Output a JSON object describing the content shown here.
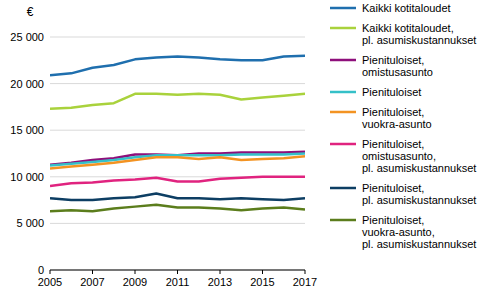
{
  "chart_data": {
    "type": "line",
    "y_label": "€",
    "x": [
      2005,
      2006,
      2007,
      2008,
      2009,
      2010,
      2011,
      2012,
      2013,
      2014,
      2015,
      2016,
      2017
    ],
    "xlim": [
      2005,
      2017
    ],
    "xticks": [
      2005,
      2007,
      2009,
      2011,
      2013,
      2015,
      2017
    ],
    "ylim": [
      0,
      25000
    ],
    "yticks": [
      0,
      {
        "value": 5000,
        "label": "5 000"
      },
      {
        "value": 10000,
        "label": "10 000"
      },
      {
        "value": 15000,
        "label": "15 000"
      },
      {
        "value": 20000,
        "label": "20 000"
      },
      {
        "value": 25000,
        "label": "25 000"
      }
    ],
    "grid": true,
    "legend": "right",
    "series": [
      {
        "name": "Kaikki kotitaloudet",
        "color": "#1f6fae",
        "values": [
          20900,
          21100,
          21700,
          22000,
          22600,
          22800,
          22900,
          22800,
          22600,
          22500,
          22500,
          22900,
          23000
        ]
      },
      {
        "name": "Kaikki kotitaloudet, pl. asumiskustannukset",
        "color": "#a9d23c",
        "values": [
          17300,
          17400,
          17700,
          17900,
          18900,
          18900,
          18800,
          18900,
          18800,
          18300,
          18500,
          18700,
          18900
        ]
      },
      {
        "name": "Pienituloiset, omistusasunto",
        "color": "#8e0f7b",
        "values": [
          11300,
          11500,
          11800,
          12000,
          12400,
          12400,
          12300,
          12500,
          12500,
          12600,
          12600,
          12600,
          12700
        ]
      },
      {
        "name": "Pienituloiset",
        "color": "#35c0c8",
        "values": [
          11200,
          11400,
          11600,
          11800,
          12100,
          12300,
          12300,
          12300,
          12300,
          12400,
          12400,
          12400,
          12500
        ]
      },
      {
        "name": "Pienituloiset, vuokra-asunto",
        "color": "#f39322",
        "values": [
          10900,
          11100,
          11300,
          11500,
          11800,
          12100,
          12100,
          11900,
          12100,
          11800,
          11900,
          12000,
          12200
        ]
      },
      {
        "name": "Pienituloiset, omistusasunto, pl. asumiskustannukset",
        "color": "#e0237f",
        "values": [
          9000,
          9300,
          9400,
          9600,
          9700,
          9900,
          9500,
          9500,
          9800,
          9900,
          10000,
          10000,
          10000
        ]
      },
      {
        "name": "Pienituloiset, pl. asumiskustannukset",
        "color": "#0d3e63",
        "values": [
          7700,
          7500,
          7500,
          7700,
          7800,
          8200,
          7700,
          7700,
          7600,
          7700,
          7600,
          7500,
          7700
        ]
      },
      {
        "name": "Pienituloiset, vuokra-asunto, pl. asumiskustannukset",
        "color": "#5b7d1c",
        "values": [
          6300,
          6400,
          6300,
          6600,
          6800,
          7000,
          6700,
          6700,
          6600,
          6400,
          6600,
          6700,
          6500
        ]
      }
    ]
  }
}
